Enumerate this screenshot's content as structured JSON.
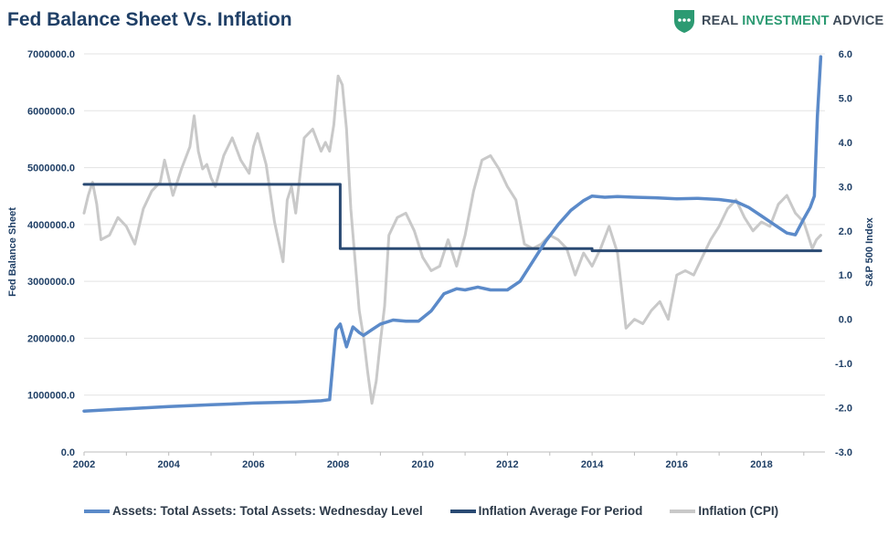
{
  "header": {
    "title": "Fed Balance Sheet Vs. Inflation"
  },
  "brand": {
    "prefix": "REAL ",
    "accent": "INVESTMENT",
    "suffix": " ADVICE",
    "logo_icon": "shield-dots-icon",
    "logo_color": "#2c9a72"
  },
  "chart_data": {
    "type": "line",
    "title": "Fed Balance Sheet Vs. Inflation",
    "xlabel": "",
    "ylabel": "Fed Balance Sheet",
    "y2label": "S&P 500 Index",
    "xlim": [
      2002,
      2019.5
    ],
    "ylim": [
      0,
      7000000
    ],
    "y2lim": [
      -3,
      6
    ],
    "x_ticks": [
      "2002",
      "2004",
      "2006",
      "2008",
      "2010",
      "2012",
      "2014",
      "2016",
      "2018"
    ],
    "y_ticks": [
      "0.0",
      "1000000.0",
      "2000000.0",
      "3000000.0",
      "4000000.0",
      "5000000.0",
      "6000000.0",
      "7000000.0"
    ],
    "y2_ticks": [
      "-3.0",
      "-2.0",
      "-1.0",
      "0.0",
      "1.0",
      "2.0",
      "3.0",
      "4.0",
      "5.0",
      "6.0"
    ],
    "grid": "horizontal",
    "legend": "bottom",
    "series": [
      {
        "name": "Assets: Total Assets: Total Assets: Wednesday Level",
        "axis": "left",
        "color": "#5b8ac9",
        "x": [
          2002.0,
          2003.0,
          2004.0,
          2005.0,
          2006.0,
          2007.0,
          2007.6,
          2007.8,
          2007.95,
          2008.05,
          2008.2,
          2008.35,
          2008.5,
          2008.6,
          2008.8,
          2009.0,
          2009.3,
          2009.6,
          2009.9,
          2010.2,
          2010.5,
          2010.8,
          2011.0,
          2011.3,
          2011.6,
          2012.0,
          2012.3,
          2012.6,
          2012.9,
          2013.2,
          2013.5,
          2013.8,
          2014.0,
          2014.3,
          2014.6,
          2015.0,
          2015.5,
          2016.0,
          2016.5,
          2017.0,
          2017.4,
          2017.7,
          2018.0,
          2018.3,
          2018.6,
          2018.8,
          2019.0,
          2019.15,
          2019.25,
          2019.32,
          2019.4
        ],
        "y": [
          720000,
          760000,
          800000,
          830000,
          860000,
          880000,
          900000,
          920000,
          2150000,
          2250000,
          1850000,
          2200000,
          2100000,
          2050000,
          2150000,
          2250000,
          2320000,
          2300000,
          2300000,
          2480000,
          2780000,
          2870000,
          2850000,
          2900000,
          2850000,
          2850000,
          3000000,
          3350000,
          3700000,
          4000000,
          4250000,
          4420000,
          4500000,
          4480000,
          4490000,
          4480000,
          4470000,
          4450000,
          4460000,
          4440000,
          4400000,
          4300000,
          4150000,
          4000000,
          3850000,
          3820000,
          4100000,
          4300000,
          4500000,
          5900000,
          6950000
        ]
      },
      {
        "name": "Inflation Average For Period",
        "axis": "right",
        "color": "#2a4a73",
        "x": [
          2002.0,
          2008.05,
          2008.05,
          2014.0,
          2014.0,
          2019.4
        ],
        "y": [
          3.05,
          3.05,
          1.6,
          1.6,
          1.55,
          1.55
        ]
      },
      {
        "name": "Inflation (CPI)",
        "axis": "right",
        "color": "#c9c9c9",
        "x": [
          2002.0,
          2002.1,
          2002.2,
          2002.3,
          2002.4,
          2002.6,
          2002.8,
          2003.0,
          2003.2,
          2003.4,
          2003.6,
          2003.8,
          2003.9,
          2004.0,
          2004.1,
          2004.3,
          2004.5,
          2004.6,
          2004.7,
          2004.8,
          2004.9,
          2005.0,
          2005.1,
          2005.3,
          2005.5,
          2005.7,
          2005.9,
          2006.0,
          2006.1,
          2006.3,
          2006.5,
          2006.7,
          2006.8,
          2006.9,
          2007.0,
          2007.2,
          2007.4,
          2007.6,
          2007.7,
          2007.8,
          2007.9,
          2008.0,
          2008.1,
          2008.2,
          2008.3,
          2008.5,
          2008.6,
          2008.7,
          2008.8,
          2008.9,
          2009.0,
          2009.1,
          2009.2,
          2009.4,
          2009.6,
          2009.8,
          2010.0,
          2010.2,
          2010.4,
          2010.6,
          2010.8,
          2011.0,
          2011.2,
          2011.4,
          2011.6,
          2011.8,
          2012.0,
          2012.2,
          2012.4,
          2012.6,
          2012.8,
          2013.0,
          2013.2,
          2013.4,
          2013.6,
          2013.8,
          2014.0,
          2014.2,
          2014.4,
          2014.6,
          2014.8,
          2015.0,
          2015.2,
          2015.4,
          2015.6,
          2015.8,
          2016.0,
          2016.2,
          2016.4,
          2016.6,
          2016.8,
          2017.0,
          2017.2,
          2017.4,
          2017.6,
          2017.8,
          2018.0,
          2018.2,
          2018.4,
          2018.6,
          2018.8,
          2019.0,
          2019.1,
          2019.2,
          2019.3,
          2019.4
        ],
        "y": [
          2.4,
          2.8,
          3.1,
          2.6,
          1.8,
          1.9,
          2.3,
          2.1,
          1.7,
          2.5,
          2.9,
          3.1,
          3.6,
          3.2,
          2.8,
          3.4,
          3.9,
          4.6,
          3.8,
          3.4,
          3.5,
          3.2,
          3.0,
          3.7,
          4.1,
          3.6,
          3.3,
          3.9,
          4.2,
          3.5,
          2.2,
          1.3,
          2.7,
          3.0,
          2.4,
          4.1,
          4.3,
          3.8,
          4.0,
          3.8,
          4.4,
          5.5,
          5.3,
          4.3,
          2.5,
          0.2,
          -0.4,
          -1.2,
          -1.9,
          -1.4,
          -0.5,
          0.3,
          1.9,
          2.3,
          2.4,
          2.0,
          1.4,
          1.1,
          1.2,
          1.8,
          1.2,
          1.9,
          2.9,
          3.6,
          3.7,
          3.4,
          3.0,
          2.7,
          1.7,
          1.6,
          1.7,
          1.9,
          1.8,
          1.6,
          1.0,
          1.5,
          1.2,
          1.6,
          2.1,
          1.5,
          -0.2,
          0.0,
          -0.1,
          0.2,
          0.4,
          0.0,
          1.0,
          1.1,
          1.0,
          1.4,
          1.8,
          2.1,
          2.5,
          2.7,
          2.3,
          2.0,
          2.2,
          2.1,
          2.6,
          2.8,
          2.4,
          2.2,
          1.9,
          1.6,
          1.8,
          1.9
        ]
      }
    ]
  }
}
